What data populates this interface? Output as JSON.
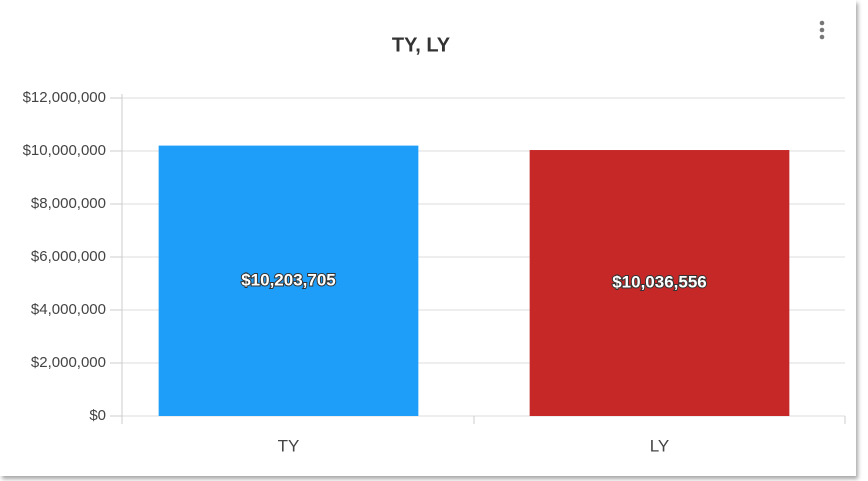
{
  "chart_data": {
    "type": "bar",
    "title": "TY, LY",
    "categories": [
      "TY",
      "LY"
    ],
    "values": [
      10203705,
      10036556
    ],
    "value_labels": [
      "$10,203,705",
      "$10,036,556"
    ],
    "colors": [
      "#1e9ef9",
      "#c62828"
    ],
    "ylim": [
      0,
      12000000
    ],
    "yticks": [
      {
        "value": 0,
        "label": "$0"
      },
      {
        "value": 2000000,
        "label": "$2,000,000"
      },
      {
        "value": 4000000,
        "label": "$4,000,000"
      },
      {
        "value": 6000000,
        "label": "$6,000,000"
      },
      {
        "value": 8000000,
        "label": "$8,000,000"
      },
      {
        "value": 10000000,
        "label": "$10,000,000"
      },
      {
        "value": 12000000,
        "label": "$12,000,000"
      }
    ],
    "grid": true
  }
}
